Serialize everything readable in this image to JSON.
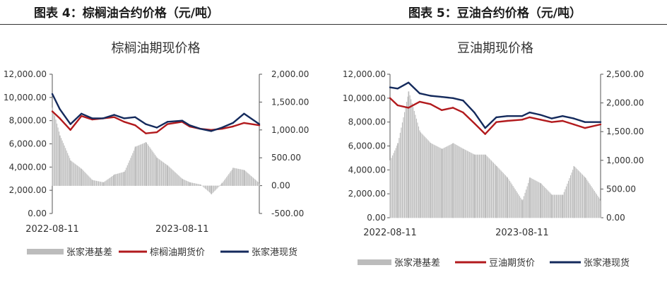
{
  "figures": [
    {
      "heading": "图表 4：棕榈油合约价格（元/吨）"
    },
    {
      "heading": "图表 5：豆油合约价格（元/吨）"
    }
  ],
  "colors": {
    "basis": "#bcbcbc",
    "futures": "#b21a1d",
    "spot": "#142a5c"
  },
  "chart_data": [
    {
      "type": "line",
      "title": "棕榈油期现价格",
      "x_range": [
        "2022-08-11",
        "2024-03-15"
      ],
      "x_ticks": [
        "2022-08-11",
        "2023-08-11"
      ],
      "y_left": {
        "range": [
          0,
          12000
        ],
        "ticks": [
          "12,000.00",
          "10,000.00",
          "8,000.00",
          "6,000.00",
          "4,000.00",
          "2,000.00",
          "0.00"
        ]
      },
      "y_right": {
        "range": [
          -500,
          2000
        ],
        "ticks": [
          "2,000.00",
          "1,500.00",
          "1,000.00",
          "500.00",
          "0.00",
          "-500.00"
        ]
      },
      "legend": [
        "张家港基差",
        "棕榈油期货价",
        "张家港现货"
      ],
      "legend_position": "bottom",
      "series": [
        {
          "name": "张家港基差",
          "kind": "bar",
          "axis": "right",
          "x": [
            "2022-08-11",
            "2022-09-01",
            "2022-10-01",
            "2022-11-01",
            "2022-12-01",
            "2023-01-01",
            "2023-02-01",
            "2023-03-01",
            "2023-04-01",
            "2023-05-01",
            "2023-06-01",
            "2023-07-01",
            "2023-08-11",
            "2023-09-01",
            "2023-10-01",
            "2023-11-01",
            "2023-12-01",
            "2024-01-01",
            "2024-02-01",
            "2024-03-15"
          ],
          "y": [
            1400,
            900,
            450,
            300,
            100,
            60,
            200,
            250,
            700,
            780,
            500,
            360,
            120,
            60,
            20,
            -150,
            50,
            320,
            280,
            40
          ]
        },
        {
          "name": "棕榈油期货价",
          "kind": "line",
          "axis": "left",
          "x": [
            "2022-08-11",
            "2022-09-01",
            "2022-10-01",
            "2022-11-01",
            "2022-12-01",
            "2023-01-01",
            "2023-02-01",
            "2023-03-01",
            "2023-04-01",
            "2023-05-01",
            "2023-06-01",
            "2023-07-01",
            "2023-08-11",
            "2023-09-01",
            "2023-10-01",
            "2023-11-01",
            "2023-12-01",
            "2024-01-01",
            "2024-02-01",
            "2024-03-15"
          ],
          "y": [
            8800,
            8200,
            7200,
            8400,
            8100,
            8200,
            8300,
            7900,
            7600,
            6900,
            7000,
            7700,
            7900,
            7500,
            7300,
            7200,
            7300,
            7500,
            7800,
            7600
          ]
        },
        {
          "name": "张家港现货",
          "kind": "line",
          "axis": "left",
          "x": [
            "2022-08-11",
            "2022-09-01",
            "2022-10-01",
            "2022-11-01",
            "2022-12-01",
            "2023-01-01",
            "2023-02-01",
            "2023-03-01",
            "2023-04-01",
            "2023-05-01",
            "2023-06-01",
            "2023-07-01",
            "2023-08-11",
            "2023-09-01",
            "2023-10-01",
            "2023-11-01",
            "2023-12-01",
            "2024-01-01",
            "2024-02-01",
            "2024-03-15"
          ],
          "y": [
            10300,
            9000,
            7700,
            8600,
            8200,
            8200,
            8500,
            8200,
            8300,
            7700,
            7400,
            7900,
            8000,
            7600,
            7300,
            7100,
            7400,
            7800,
            8600,
            7700
          ]
        }
      ]
    },
    {
      "type": "line",
      "title": "豆油期现价格",
      "x_range": [
        "2022-08-11",
        "2024-03-15"
      ],
      "x_ticks": [
        "2022-08-11",
        "2023-08-11"
      ],
      "y_left": {
        "range": [
          0,
          12000
        ],
        "ticks": [
          "12,000.00",
          "10,000.00",
          "8,000.00",
          "6,000.00",
          "4,000.00",
          "2,000.00",
          "0.00"
        ]
      },
      "y_right": {
        "range": [
          0,
          2500
        ],
        "ticks": [
          "2,500.00",
          "2,000.00",
          "1,500.00",
          "1,000.00",
          "500.00",
          "0.00"
        ]
      },
      "legend": [
        "张家港基差",
        "豆油期货价",
        "张家港现货"
      ],
      "legend_position": "bottom",
      "series": [
        {
          "name": "张家港基差",
          "kind": "bar",
          "axis": "right",
          "x": [
            "2022-08-11",
            "2022-09-01",
            "2022-10-01",
            "2022-11-01",
            "2022-12-01",
            "2023-01-01",
            "2023-02-01",
            "2023-03-01",
            "2023-04-01",
            "2023-05-01",
            "2023-06-01",
            "2023-07-01",
            "2023-08-11",
            "2023-09-01",
            "2023-10-01",
            "2023-11-01",
            "2023-12-01",
            "2024-01-01",
            "2024-02-01",
            "2024-03-15"
          ],
          "y": [
            1000,
            1300,
            2200,
            1500,
            1300,
            1200,
            1300,
            1200,
            1100,
            1100,
            900,
            700,
            300,
            700,
            600,
            400,
            400,
            900,
            700,
            300
          ]
        },
        {
          "name": "豆油期货价",
          "kind": "line",
          "axis": "left",
          "x": [
            "2022-08-11",
            "2022-09-01",
            "2022-10-01",
            "2022-11-01",
            "2022-12-01",
            "2023-01-01",
            "2023-02-01",
            "2023-03-01",
            "2023-04-01",
            "2023-05-01",
            "2023-06-01",
            "2023-07-01",
            "2023-08-11",
            "2023-09-01",
            "2023-10-01",
            "2023-11-01",
            "2023-12-01",
            "2024-01-01",
            "2024-02-01",
            "2024-03-15"
          ],
          "y": [
            10000,
            9400,
            9200,
            9700,
            9500,
            9000,
            9200,
            8800,
            7900,
            7000,
            8000,
            8100,
            8200,
            8400,
            8200,
            8000,
            8100,
            7800,
            7500,
            7800
          ]
        },
        {
          "name": "张家港现货",
          "kind": "line",
          "axis": "left",
          "x": [
            "2022-08-11",
            "2022-09-01",
            "2022-10-01",
            "2022-11-01",
            "2022-12-01",
            "2023-01-01",
            "2023-02-01",
            "2023-03-01",
            "2023-04-01",
            "2023-05-01",
            "2023-06-01",
            "2023-07-01",
            "2023-08-11",
            "2023-09-01",
            "2023-10-01",
            "2023-11-01",
            "2023-12-01",
            "2024-01-01",
            "2024-02-01",
            "2024-03-15"
          ],
          "y": [
            10900,
            10800,
            11300,
            10400,
            10200,
            10100,
            10000,
            9800,
            8800,
            7500,
            8400,
            8500,
            8500,
            8800,
            8600,
            8300,
            8500,
            8300,
            8000,
            8000
          ]
        }
      ]
    }
  ]
}
